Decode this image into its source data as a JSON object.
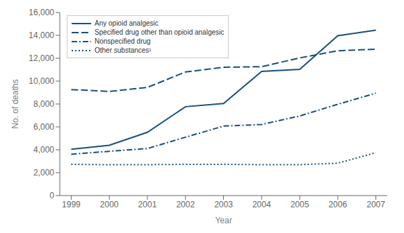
{
  "chart_data": {
    "type": "line",
    "xlabel": "Year",
    "ylabel": "No. of deaths",
    "x": [
      1999,
      2000,
      2001,
      2002,
      2003,
      2004,
      2005,
      2006,
      2007
    ],
    "series": [
      {
        "name": "Any opioid analgesic",
        "color": "#1a4f7a",
        "line_style": "solid",
        "values": [
          4041,
          4400,
          5528,
          7765,
          8050,
          10853,
          11033,
          13973,
          14459
        ]
      },
      {
        "name": "Specified drug other than opioid analgesic",
        "color": "#1a4f7a",
        "line_style": "dashed",
        "values": [
          9262,
          9101,
          9453,
          10801,
          11212,
          11264,
          12028,
          12654,
          12790
        ]
      },
      {
        "name": "Nonspecified drug",
        "color": "#1a4f7a",
        "line_style": "dashdot",
        "values": [
          3608,
          3870,
          4109,
          5100,
          6070,
          6211,
          6956,
          7978,
          8947
        ]
      },
      {
        "name": "Other substances¹",
        "color": "#1a4f7a",
        "line_style": "dotted",
        "values": [
          2730,
          2696,
          2700,
          2730,
          2730,
          2700,
          2700,
          2830,
          3750
        ]
      }
    ],
    "xlim": [
      1998.7,
      2007.3
    ],
    "xticks": [
      1999,
      2000,
      2001,
      2002,
      2003,
      2004,
      2005,
      2006,
      2007
    ],
    "ylim": [
      0,
      16000
    ],
    "yticks": [
      0,
      {
        "value": 2000,
        "label": "2,000"
      },
      {
        "value": 4000,
        "label": "4,000"
      },
      {
        "value": 6000,
        "label": "6,000"
      },
      {
        "value": 8000,
        "label": "8,000"
      },
      {
        "value": 10000,
        "label": "10,000"
      },
      {
        "value": 12000,
        "label": "12,000"
      },
      {
        "value": 14000,
        "label": "14,000"
      },
      {
        "value": 16000,
        "label": "16,000"
      }
    ],
    "legend": "upper left"
  }
}
